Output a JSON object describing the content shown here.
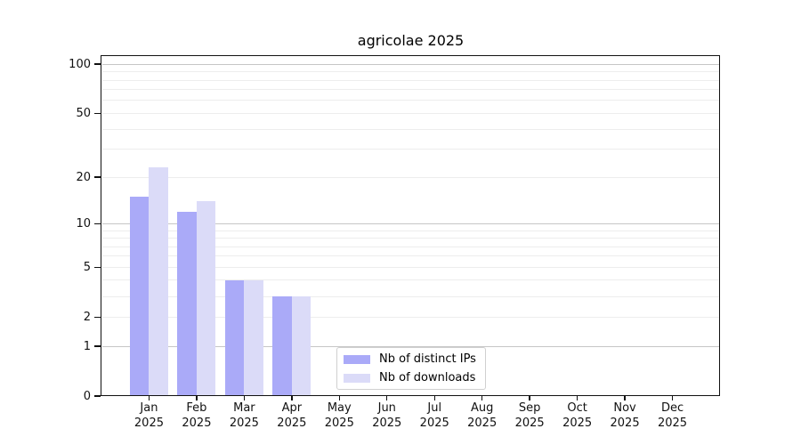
{
  "chart_data": {
    "type": "bar",
    "title": "agricolae 2025",
    "categories": [
      "Jan",
      "Feb",
      "Mar",
      "Apr",
      "May",
      "Jun",
      "Jul",
      "Aug",
      "Sep",
      "Oct",
      "Nov",
      "Dec"
    ],
    "x_sublabel": "2025",
    "series": [
      {
        "name": "Nb of distinct IPs",
        "color": "#aaaaf8",
        "values": [
          15,
          12,
          4,
          3,
          0,
          0,
          0,
          0,
          0,
          0,
          0,
          0
        ]
      },
      {
        "name": "Nb of downloads",
        "color": "#dbdbf8",
        "values": [
          23,
          14,
          4,
          3,
          0,
          0,
          0,
          0,
          0,
          0,
          0,
          0
        ]
      }
    ],
    "y_axis": {
      "scale": "log10(1+y)",
      "tick_values": [
        0,
        1,
        2,
        5,
        10,
        20,
        50,
        100
      ],
      "major_gridlines": [
        1,
        10,
        100
      ],
      "minor_gridlines": [
        2,
        3,
        4,
        5,
        6,
        7,
        8,
        9,
        20,
        30,
        40,
        50,
        60,
        70,
        80,
        90
      ],
      "ylim": [
        0,
        110
      ]
    },
    "legend_position": "bottom-center",
    "grid": true,
    "colors": {
      "major_grid": "#c6c6c6",
      "minor_grid": "#ededed",
      "axis": "#111111",
      "background": "#ffffff"
    }
  }
}
